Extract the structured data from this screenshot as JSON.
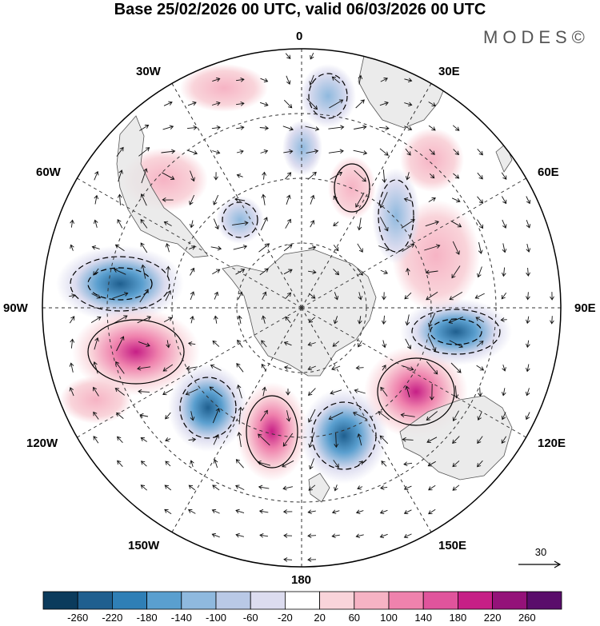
{
  "title": "Base 25/02/2026 00 UTC, valid 06/03/2026 00 UTC",
  "logo": "MODES©",
  "longitude_labels": [
    "0",
    "30E",
    "60E",
    "90E",
    "120E",
    "150E",
    "180",
    "150W",
    "120W",
    "90W",
    "60W",
    "30W"
  ],
  "reference_vector": {
    "value": "30"
  },
  "colorbar": {
    "ticks": [
      "-260",
      "-220",
      "-180",
      "-140",
      "-100",
      "-60",
      "-20",
      "20",
      "60",
      "100",
      "140",
      "180",
      "220",
      "260"
    ],
    "colors": [
      "#0b3b5c",
      "#1f5f8f",
      "#2f7fb6",
      "#5a9fcf",
      "#8fb9de",
      "#b9c9e6",
      "#dcdcef",
      "#ffffff",
      "#f9d4da",
      "#f6b3c4",
      "#ef82ad",
      "#e0549c",
      "#c61f86",
      "#941279",
      "#5a0d6b"
    ]
  },
  "colors": {
    "land": "#e8e8e8",
    "coast": "#555555",
    "grid": "#333333",
    "frame": "#000000"
  }
}
